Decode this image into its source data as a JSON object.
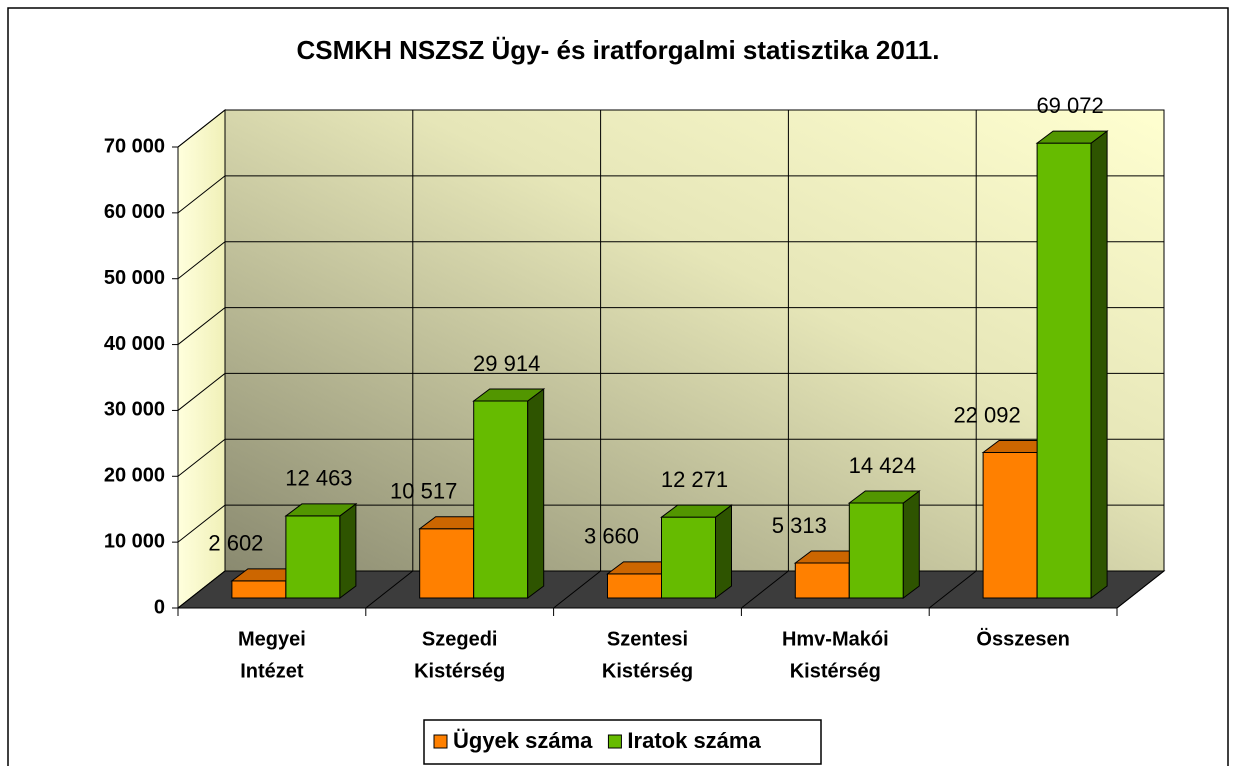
{
  "chart_data": {
    "type": "bar3d",
    "title": "CSMKH NSZSZ Ügy- és iratforgalmi statisztika 2011.",
    "categories": [
      [
        "Megyei",
        "Intézet"
      ],
      [
        "Szegedi",
        "Kistérség"
      ],
      [
        "Szentesi",
        "Kistérség"
      ],
      [
        "Hmv-Makói",
        "Kistérség"
      ],
      [
        "Összesen"
      ]
    ],
    "series": [
      {
        "name": "Ügyek száma",
        "color": "#ff8000",
        "values": [
          2602,
          10517,
          3660,
          5313,
          22092
        ],
        "value_labels": [
          "2 602",
          "10 517",
          "3 660",
          "5 313",
          "22 092"
        ]
      },
      {
        "name": "Iratok száma",
        "color": "#66bb00",
        "values": [
          12463,
          29914,
          12271,
          14424,
          69072
        ],
        "value_labels": [
          "12 463",
          "29 914",
          "12 271",
          "14 424",
          "69 072"
        ]
      }
    ],
    "ylim": [
      0,
      70000
    ],
    "yticks": [
      0,
      {
        "value": 10000,
        "label": "10 000"
      },
      {
        "value": 20000,
        "label": "20 000"
      },
      {
        "value": 30000,
        "label": "30 000"
      },
      {
        "value": 40000,
        "label": "40 000"
      },
      {
        "value": 50000,
        "label": "50 000"
      },
      {
        "value": 60000,
        "label": "60 000"
      },
      {
        "value": 70000,
        "label": "70 000"
      }
    ],
    "grid": true,
    "legend": "bottom"
  }
}
